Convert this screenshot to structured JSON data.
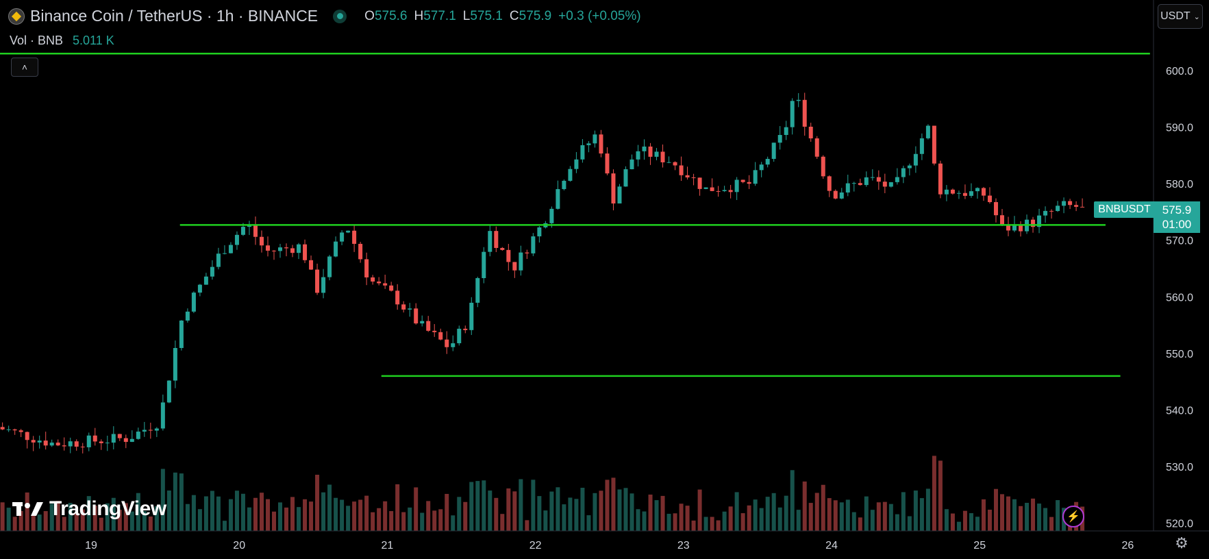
{
  "header": {
    "title": "Binance Coin / TetherUS · 1h · BINANCE",
    "ohlc": {
      "o_label": "O",
      "o": "575.6",
      "h_label": "H",
      "h": "577.1",
      "l_label": "L",
      "l": "575.1",
      "c_label": "C",
      "c": "575.9",
      "change": "+0.3 (+0.05%)"
    }
  },
  "volume_legend": {
    "label": "Vol · BNB",
    "value": "5.011 K"
  },
  "currency": {
    "label": "USDT",
    "icon": "chevron-down-icon"
  },
  "symbol_label": "BNBUSDT",
  "last_price": {
    "price": "575.9",
    "countdown": "01:00"
  },
  "logo": "TradingView",
  "colors": {
    "up": "#26a69a",
    "down": "#ef5350",
    "up_vol": "#17524b",
    "down_vol": "#7a2e2e",
    "line": "#1fd01f",
    "bg": "#000000"
  },
  "chart_data": {
    "type": "candlestick",
    "interval": "1h",
    "price_axis": {
      "min": 518,
      "max": 604,
      "ticks": [
        600.0,
        590.0,
        580.0,
        570.0,
        560.0,
        550.0,
        540.0,
        530.0,
        520.0
      ],
      "tick_labels": [
        "600.0",
        "590.0",
        "580.0",
        "570.0",
        "560.0",
        "550.0",
        "540.0",
        "530.0",
        "520.0"
      ]
    },
    "x_axis": {
      "start_day": 18.36,
      "end_day": 25.71,
      "tick_labels": [
        "19",
        "20",
        "21",
        "22",
        "23",
        "24",
        "25",
        "26"
      ],
      "tick_days": [
        19,
        20,
        21,
        22,
        23,
        24,
        25,
        26
      ]
    },
    "horizontal_lines": [
      {
        "price": 603.0,
        "from_day": 18.36,
        "to_day": 26.15
      },
      {
        "price": 572.7,
        "from_day": 19.6,
        "to_day": 25.85
      },
      {
        "price": 546.0,
        "from_day": 20.96,
        "to_day": 25.95
      }
    ],
    "waypoints": [
      {
        "day": 18.36,
        "price": 537
      },
      {
        "day": 18.75,
        "price": 534
      },
      {
        "day": 19.25,
        "price": 535
      },
      {
        "day": 19.46,
        "price": 538
      },
      {
        "day": 19.62,
        "price": 557
      },
      {
        "day": 19.88,
        "price": 568
      },
      {
        "day": 20.05,
        "price": 573
      },
      {
        "day": 20.18,
        "price": 568
      },
      {
        "day": 20.42,
        "price": 569
      },
      {
        "day": 20.52,
        "price": 561
      },
      {
        "day": 20.72,
        "price": 573
      },
      {
        "day": 20.88,
        "price": 563
      },
      {
        "day": 21.05,
        "price": 560
      },
      {
        "day": 21.22,
        "price": 555
      },
      {
        "day": 21.42,
        "price": 551
      },
      {
        "day": 21.55,
        "price": 556
      },
      {
        "day": 21.68,
        "price": 572
      },
      {
        "day": 21.85,
        "price": 565
      },
      {
        "day": 22.05,
        "price": 573
      },
      {
        "day": 22.22,
        "price": 583
      },
      {
        "day": 22.42,
        "price": 589
      },
      {
        "day": 22.52,
        "price": 577
      },
      {
        "day": 22.68,
        "price": 586
      },
      {
        "day": 22.92,
        "price": 584
      },
      {
        "day": 23.15,
        "price": 579
      },
      {
        "day": 23.45,
        "price": 580
      },
      {
        "day": 23.68,
        "price": 589
      },
      {
        "day": 23.75,
        "price": 596
      },
      {
        "day": 24.0,
        "price": 578
      },
      {
        "day": 24.25,
        "price": 581
      },
      {
        "day": 24.42,
        "price": 579
      },
      {
        "day": 24.65,
        "price": 590
      },
      {
        "day": 24.72,
        "price": 579
      },
      {
        "day": 25.05,
        "price": 578
      },
      {
        "day": 25.15,
        "price": 572
      },
      {
        "day": 25.35,
        "price": 573
      },
      {
        "day": 25.55,
        "price": 576
      },
      {
        "day": 25.71,
        "price": 575.9
      }
    ]
  }
}
